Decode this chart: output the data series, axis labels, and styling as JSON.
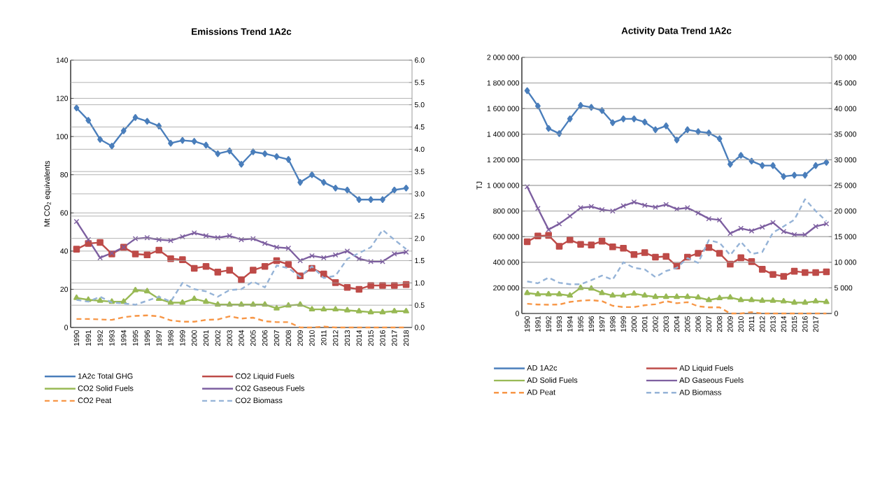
{
  "chart_data": [
    {
      "type": "line",
      "title": "Emissions Trend 1A2c",
      "ylabel": "Mt CO$_{2}$ equivalents",
      "categories": [
        "1990",
        "1991",
        "1992",
        "1993",
        "1994",
        "1995",
        "1996",
        "1997",
        "1998",
        "1999",
        "2000",
        "2001",
        "2002",
        "2003",
        "2004",
        "2005",
        "2006",
        "2007",
        "2008",
        "2009",
        "2010",
        "2011",
        "2012",
        "2013",
        "2014",
        "2015",
        "2016",
        "2017",
        "2018"
      ],
      "series": [
        {
          "name": "1A2c Total GHG",
          "color": "#4a7ebb",
          "marker": "diamond",
          "line_style": "solid",
          "values": [
            115,
            108.5,
            98.5,
            95,
            103,
            110,
            108,
            105.5,
            96.5,
            98,
            97.5,
            95.5,
            91,
            92.5,
            85.5,
            92,
            91,
            89.5,
            88,
            76,
            80,
            76,
            73,
            72,
            67,
            67,
            67,
            72,
            73
          ]
        },
        {
          "name": "CO2 Liquid Fuels",
          "color": "#be4b48",
          "marker": "square",
          "line_style": "solid",
          "values": [
            41,
            44,
            44.5,
            38.5,
            42,
            38.5,
            38,
            40.5,
            36,
            35.5,
            31,
            32,
            29,
            30,
            25,
            30,
            32,
            35,
            33,
            27,
            31,
            28,
            23.5,
            21,
            20,
            22,
            22,
            22,
            22.5
          ]
        },
        {
          "name": "CO2 Solid Fuels",
          "color": "#98b954",
          "marker": "triangle",
          "line_style": "solid",
          "values": [
            15.5,
            14.5,
            14,
            13.5,
            13.5,
            19.5,
            19,
            15,
            13,
            13,
            15,
            13.5,
            12,
            12,
            12,
            12,
            12,
            10,
            11.5,
            12,
            9.5,
            9.5,
            9.5,
            9,
            8.5,
            8,
            8,
            8.5,
            8.5
          ]
        },
        {
          "name": "CO2 Gaseous Fuels",
          "color": "#7d5fa0",
          "marker": "cross",
          "line_style": "solid",
          "values": [
            55.5,
            46,
            36.5,
            39,
            42,
            46.5,
            47,
            46,
            45.5,
            47.5,
            49.5,
            48,
            47,
            48,
            46,
            46.5,
            44,
            42,
            41.5,
            35,
            37.5,
            36.5,
            38,
            40,
            36,
            34.5,
            34.5,
            38.5,
            39.5
          ]
        },
        {
          "name": "CO2 Peat",
          "color": "#f79646",
          "marker": "none",
          "line_style": "dashed",
          "axis": "y2",
          "values": [
            0.19,
            0.19,
            0.18,
            0.17,
            0.23,
            0.26,
            0.27,
            0.25,
            0.16,
            0.13,
            0.13,
            0.17,
            0.18,
            0.25,
            0.2,
            0.22,
            0.14,
            0.12,
            0.12,
            0.0,
            0.0,
            0.02,
            0.0,
            0.0,
            0.0,
            0.0,
            0.0,
            0.0,
            0.0
          ]
        },
        {
          "name": "CO2 Biomass",
          "color": "#95b3d7",
          "marker": "none",
          "line_style": "dashed",
          "axis": "y2",
          "values": [
            0.62,
            0.58,
            0.69,
            0.56,
            0.54,
            0.51,
            0.6,
            0.69,
            0.58,
            1.0,
            0.86,
            0.81,
            0.69,
            0.84,
            0.86,
            1.03,
            0.9,
            1.39,
            1.33,
            1.14,
            1.37,
            1.11,
            1.16,
            1.54,
            1.67,
            1.8,
            2.19,
            1.97,
            1.76
          ]
        }
      ],
      "ylim": [
        0,
        140
      ],
      "yticks": [
        0,
        20,
        40,
        60,
        80,
        100,
        120,
        140
      ],
      "y2lim": [
        0,
        6
      ],
      "y2ticks": [
        {
          "value": 0,
          "label": "0.0"
        },
        {
          "value": 0.5,
          "label": "0.5"
        },
        {
          "value": 1,
          "label": "1.0"
        },
        {
          "value": 1.5,
          "label": "1.5"
        },
        {
          "value": 2,
          "label": "2.0"
        },
        {
          "value": 2.5,
          "label": "2.5"
        },
        {
          "value": 3,
          "label": "3.0"
        },
        {
          "value": 3.5,
          "label": "3.5"
        },
        {
          "value": 4,
          "label": "4.0"
        },
        {
          "value": 4.5,
          "label": "4.5"
        },
        {
          "value": 5,
          "label": "5.0"
        },
        {
          "value": 5.5,
          "label": "5.5"
        },
        {
          "value": 6,
          "label": "6.0"
        }
      ],
      "grid": true,
      "legend": "bottom"
    },
    {
      "type": "line",
      "title": "Activity Data Trend 1A2c",
      "ylabel": "TJ",
      "categories": [
        "1990",
        "1991",
        "1992",
        "1993",
        "1994",
        "1995",
        "1996",
        "1997",
        "1998",
        "1999",
        "2000",
        "2001",
        "2002",
        "2003",
        "2004",
        "2005",
        "2006",
        "2007",
        "2008",
        "2009",
        "2010",
        "2011",
        "2012",
        "2013",
        "2014",
        "2015",
        "2016",
        "2017",
        null
      ],
      "series": [
        {
          "name": "AD 1A2c",
          "color": "#4a7ebb",
          "marker": "diamond",
          "line_style": "solid",
          "values": [
            1740000,
            1620000,
            1445000,
            1405000,
            1520000,
            1625000,
            1610000,
            1585000,
            1490000,
            1520000,
            1520000,
            1495000,
            1435000,
            1465000,
            1355000,
            1435000,
            1420000,
            1410000,
            1365000,
            1165000,
            1235000,
            1190000,
            1155000,
            1155000,
            1070000,
            1080000,
            1080000,
            1155000,
            1180000
          ]
        },
        {
          "name": "AD Liquid Fuels",
          "color": "#be4b48",
          "marker": "square",
          "line_style": "solid",
          "values": [
            560000,
            605000,
            610000,
            525000,
            575000,
            540000,
            535000,
            565000,
            520000,
            510000,
            460000,
            475000,
            440000,
            445000,
            370000,
            440000,
            470000,
            515000,
            470000,
            385000,
            435000,
            405000,
            345000,
            305000,
            290000,
            330000,
            320000,
            320000,
            325000
          ]
        },
        {
          "name": "AD Solid Fuels",
          "color": "#98b954",
          "marker": "triangle",
          "line_style": "solid",
          "values": [
            160000,
            150000,
            150000,
            150000,
            140000,
            200000,
            195000,
            160000,
            140000,
            140000,
            155000,
            140000,
            130000,
            130000,
            130000,
            130000,
            125000,
            105000,
            120000,
            125000,
            105000,
            105000,
            100000,
            100000,
            95000,
            85000,
            85000,
            95000,
            90000
          ]
        },
        {
          "name": "AD Gaseous Fuels",
          "color": "#7d5fa0",
          "marker": "cross",
          "line_style": "solid",
          "values": [
            990000,
            820000,
            655000,
            700000,
            760000,
            825000,
            835000,
            810000,
            800000,
            840000,
            870000,
            845000,
            830000,
            850000,
            815000,
            825000,
            785000,
            740000,
            730000,
            625000,
            665000,
            645000,
            675000,
            710000,
            640000,
            615000,
            615000,
            680000,
            700000
          ]
        },
        {
          "name": "AD Peat",
          "color": "#f79646",
          "marker": "none",
          "line_style": "dashed",
          "axis": "y2",
          "values": [
            1900,
            1750,
            1700,
            1750,
            2250,
            2500,
            2600,
            2400,
            1500,
            1250,
            1250,
            1600,
            1800,
            2400,
            2000,
            2200,
            1400,
            1200,
            1200,
            0,
            0,
            250,
            0,
            0,
            0,
            0,
            0,
            0,
            0
          ]
        },
        {
          "name": "AD Biomass",
          "color": "#95b3d7",
          "marker": "none",
          "line_style": "dashed",
          "axis": "y2",
          "values": [
            6250,
            5900,
            7000,
            6000,
            5700,
            5700,
            6500,
            7400,
            6600,
            10000,
            8900,
            8600,
            7100,
            8300,
            8900,
            10800,
            9900,
            14300,
            13800,
            11400,
            14000,
            11600,
            12000,
            15800,
            17000,
            18300,
            22300,
            20000,
            18000
          ]
        }
      ],
      "ylim": [
        0,
        2000000
      ],
      "yticks": [
        {
          "value": 0,
          "label": "0"
        },
        {
          "value": 200000,
          "label": "200 000"
        },
        {
          "value": 400000,
          "label": "400 000"
        },
        {
          "value": 600000,
          "label": "600 000"
        },
        {
          "value": 800000,
          "label": "800 000"
        },
        {
          "value": 1000000,
          "label": "1 000 000"
        },
        {
          "value": 1200000,
          "label": "1 200 000"
        },
        {
          "value": 1400000,
          "label": "1 400 000"
        },
        {
          "value": 1600000,
          "label": "1 600 000"
        },
        {
          "value": 1800000,
          "label": "1 800 000"
        },
        {
          "value": 2000000,
          "label": "2 000 000"
        }
      ],
      "y2lim": [
        0,
        50000
      ],
      "y2ticks": [
        {
          "value": 0,
          "label": "0"
        },
        {
          "value": 5000,
          "label": "5 000"
        },
        {
          "value": 10000,
          "label": "10 000"
        },
        {
          "value": 15000,
          "label": "15 000"
        },
        {
          "value": 20000,
          "label": "20 000"
        },
        {
          "value": 25000,
          "label": "25 000"
        },
        {
          "value": 30000,
          "label": "30 000"
        },
        {
          "value": 35000,
          "label": "35 000"
        },
        {
          "value": 40000,
          "label": "40 000"
        },
        {
          "value": 45000,
          "label": "45 000"
        },
        {
          "value": 50000,
          "label": "50 000"
        }
      ],
      "grid": true,
      "legend": "bottom"
    }
  ]
}
